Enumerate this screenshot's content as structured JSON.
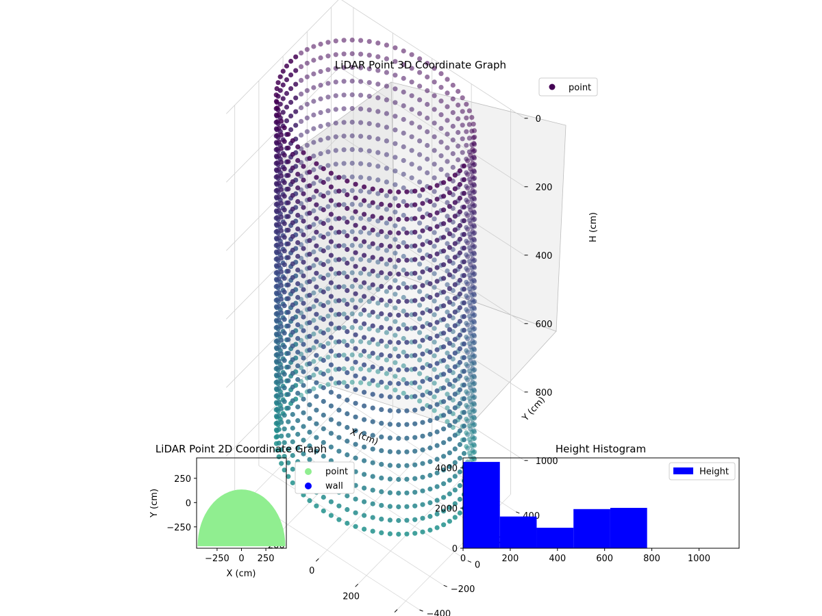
{
  "chart_data": [
    {
      "type": "scatter",
      "subtype": "3d",
      "title": "LiDAR Point 3D Coordinate Graph",
      "xlabel": "X (cm)",
      "ylabel": "Y (cm)",
      "zlabel": "H (cm)",
      "xticks": [
        "−400",
        "−200",
        "0",
        "200",
        "400"
      ],
      "yticks": [
        "−400",
        "−200",
        "0",
        "200",
        "400"
      ],
      "zticks": [
        "0",
        "200",
        "400",
        "600",
        "800",
        "1000"
      ],
      "zlim": [
        1150,
        0
      ],
      "legend": {
        "entries": [
          "point"
        ],
        "placement": "top-right"
      },
      "colormap": "viridis",
      "colors": {
        "top": "#440154",
        "mid": "#3b528b",
        "bottom": "#21918c"
      },
      "shape": {
        "radius_cm": 450,
        "h_min_cm": 0,
        "h_max_cm": 1100
      },
      "grid": true
    },
    {
      "type": "scatter",
      "title": "LiDAR Point 2D Coordinate Graph",
      "xlabel": "X (cm)",
      "ylabel": "Y (cm)",
      "xticks": [
        "−250",
        "0",
        "250"
      ],
      "yticks": [
        "250",
        "0",
        "−250"
      ],
      "xlim": [
        -460,
        460
      ],
      "ylim": [
        -470,
        460
      ],
      "series": [
        {
          "name": "point",
          "color": "#90ee90",
          "region": "disc_upper_cropped",
          "radius_cm": 450
        },
        {
          "name": "wall",
          "color": "#0000ff"
        }
      ],
      "legend": {
        "placement": "outside-right"
      }
    },
    {
      "type": "bar",
      "subtype": "histogram",
      "title": "Height Histogram",
      "xticks": [
        "0",
        "200",
        "400",
        "600",
        "800",
        "1000"
      ],
      "yticks": [
        "0",
        "2000",
        "4000"
      ],
      "xlim": [
        0,
        1170
      ],
      "ylim": [
        0,
        4500
      ],
      "bins": [
        {
          "x0": 0,
          "x1": 156,
          "count": 4300
        },
        {
          "x0": 156,
          "x1": 312,
          "count": 1580
        },
        {
          "x0": 312,
          "x1": 468,
          "count": 1020
        },
        {
          "x0": 468,
          "x1": 624,
          "count": 1950
        },
        {
          "x0": 624,
          "x1": 780,
          "count": 2010
        }
      ],
      "series": [
        {
          "name": "Height",
          "color": "#0000ff"
        }
      ],
      "legend": {
        "placement": "top-right"
      }
    }
  ]
}
